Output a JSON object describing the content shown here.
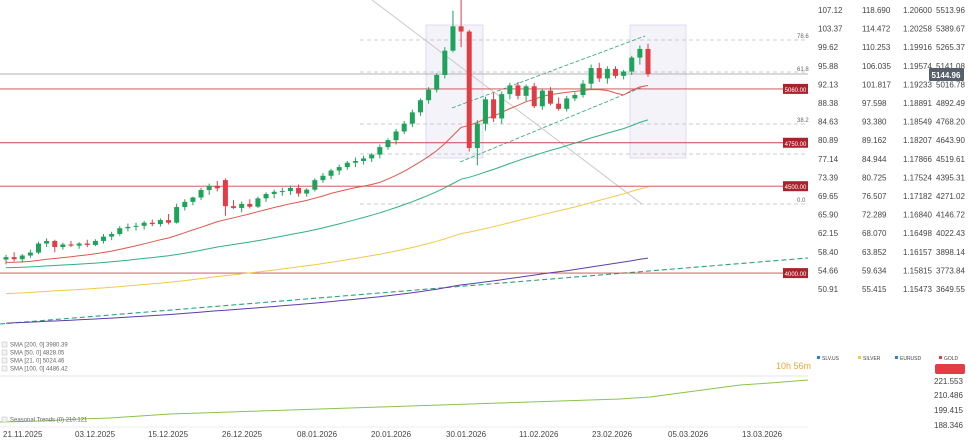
{
  "colors": {
    "up": "#1ea35a",
    "down": "#e03d45",
    "sma20": "#e0574c",
    "sma50": "#2fb17f",
    "sma100": "#f2c94c",
    "sma200": "#5b3fa8",
    "trend": "#2aa27a",
    "support": "#c8454a",
    "seasonal": "#8bc34a",
    "countdown": "#e7a83c",
    "price_badge": "#57606a"
  },
  "chart_data": {
    "type": "candlestick",
    "instrument": "GOLD",
    "last_price": "5144.96",
    "countdown": "10h 56m",
    "x_ticks": [
      "21.11.2025",
      "03.12.2025",
      "15.12.2025",
      "26.12.2025",
      "08.01.2026",
      "20.01.2026",
      "30.01.2026",
      "11.02.2026",
      "23.02.2026",
      "05.03.2026",
      "13.03.2026"
    ],
    "y_ticks": {
      "SLV.US": [
        "107.12",
        "103.37",
        "99.62",
        "95.88",
        "92.13",
        "88.38",
        "84.63",
        "80.89",
        "77.14",
        "73.39",
        "69.65",
        "65.90",
        "62.15",
        "58.40",
        "54.66",
        "50.91"
      ],
      "SILVER": [
        "118.690",
        "114.472",
        "110.253",
        "106.035",
        "101.817",
        "97.598",
        "93.380",
        "89.162",
        "84.944",
        "80.725",
        "76.507",
        "72.289",
        "68.070",
        "63.852",
        "59.634",
        "55.415"
      ],
      "EURUSD": [
        "1.20600",
        "1.20258",
        "1.19916",
        "1.19574",
        "1.19233",
        "1.18891",
        "1.18549",
        "1.18207",
        "1.17866",
        "1.17524",
        "1.17182",
        "1.16840",
        "1.16498",
        "1.16157",
        "1.15815",
        "1.15473"
      ],
      "GOLD": [
        "5513.96",
        "5389.67",
        "5265.37",
        "5141.08",
        "5016.78",
        "4892.49",
        "4768.20",
        "4643.90",
        "4519.61",
        "4395.31",
        "4271.02",
        "4146.72",
        "4022.43",
        "3898.14",
        "3773.84",
        "3649.55"
      ]
    },
    "y_range": [
      3649.55,
      5513.96
    ],
    "legend": [
      "SLV.US",
      "SILVER",
      "EURUSD",
      "GOLD"
    ],
    "support_levels": [
      {
        "label": "5060.00",
        "value": 5060
      },
      {
        "label": "4750.00",
        "value": 4750
      },
      {
        "label": "4500.00",
        "value": 4500
      },
      {
        "label": "4000.00",
        "value": 4000
      }
    ],
    "fib_labels": [
      "78.6",
      "61.8",
      "38.2",
      "0.0"
    ],
    "sma_legend": [
      {
        "name": "SMA [200, 0]",
        "value": "3980.39"
      },
      {
        "name": "SMA [50, 0]",
        "value": "4828.05"
      },
      {
        "name": "SMA [21, 0]",
        "value": "5024.46"
      },
      {
        "name": "SMA [100, 0]",
        "value": "4486.42"
      }
    ],
    "seasonal_label": "Seasonal Trends (0) 210.121",
    "seasonal_ticks": [
      "221.553",
      "210.486",
      "199.415",
      "188.346"
    ],
    "candles": [
      [
        4078,
        4105,
        4050,
        4092
      ],
      [
        4092,
        4120,
        4068,
        4080
      ],
      [
        4080,
        4110,
        4060,
        4101
      ],
      [
        4101,
        4135,
        4088,
        4118
      ],
      [
        4118,
        4180,
        4110,
        4170
      ],
      [
        4170,
        4200,
        4150,
        4185
      ],
      [
        4185,
        4192,
        4120,
        4150
      ],
      [
        4150,
        4175,
        4135,
        4165
      ],
      [
        4165,
        4185,
        4150,
        4158
      ],
      [
        4158,
        4178,
        4140,
        4170
      ],
      [
        4170,
        4192,
        4150,
        4162
      ],
      [
        4162,
        4195,
        4155,
        4185
      ],
      [
        4185,
        4225,
        4170,
        4210
      ],
      [
        4210,
        4238,
        4190,
        4225
      ],
      [
        4225,
        4270,
        4215,
        4258
      ],
      [
        4258,
        4285,
        4240,
        4266
      ],
      [
        4266,
        4290,
        4245,
        4272
      ],
      [
        4272,
        4300,
        4250,
        4290
      ],
      [
        4290,
        4308,
        4270,
        4282
      ],
      [
        4282,
        4315,
        4268,
        4305
      ],
      [
        4305,
        4340,
        4280,
        4290
      ],
      [
        4290,
        4400,
        4285,
        4380
      ],
      [
        4380,
        4425,
        4360,
        4410
      ],
      [
        4410,
        4440,
        4390,
        4435
      ],
      [
        4435,
        4490,
        4420,
        4478
      ],
      [
        4478,
        4515,
        4450,
        4502
      ],
      [
        4502,
        4530,
        4470,
        4488
      ],
      [
        4535,
        4545,
        4330,
        4385
      ],
      [
        4385,
        4420,
        4368,
        4375
      ],
      [
        4375,
        4412,
        4350,
        4398
      ],
      [
        4398,
        4425,
        4372,
        4382
      ],
      [
        4382,
        4440,
        4375,
        4430
      ],
      [
        4430,
        4465,
        4410,
        4455
      ],
      [
        4455,
        4480,
        4430,
        4468
      ],
      [
        4468,
        4492,
        4445,
        4472
      ],
      [
        4472,
        4502,
        4450,
        4490
      ],
      [
        4490,
        4510,
        4440,
        4458
      ],
      [
        4458,
        4488,
        4440,
        4480
      ],
      [
        4480,
        4545,
        4470,
        4535
      ],
      [
        4535,
        4575,
        4520,
        4560
      ],
      [
        4560,
        4600,
        4540,
        4590
      ],
      [
        4590,
        4625,
        4565,
        4610
      ],
      [
        4610,
        4645,
        4595,
        4635
      ],
      [
        4635,
        4665,
        4610,
        4645
      ],
      [
        4645,
        4675,
        4625,
        4660
      ],
      [
        4660,
        4690,
        4640,
        4682
      ],
      [
        4682,
        4740,
        4660,
        4725
      ],
      [
        4725,
        4775,
        4710,
        4765
      ],
      [
        4765,
        4830,
        4740,
        4815
      ],
      [
        4815,
        4875,
        4800,
        4860
      ],
      [
        4860,
        4940,
        4840,
        4925
      ],
      [
        4925,
        5005,
        4905,
        4995
      ],
      [
        4995,
        5070,
        4975,
        5055
      ],
      [
        5055,
        5150,
        5040,
        5140
      ],
      [
        5140,
        5300,
        5120,
        5280
      ],
      [
        5280,
        5510,
        5270,
        5420
      ],
      [
        5420,
        5580,
        5300,
        5390
      ],
      [
        5390,
        5400,
        4700,
        4720
      ],
      [
        4720,
        4880,
        4620,
        4860
      ],
      [
        4860,
        5015,
        4820,
        5000
      ],
      [
        5000,
        5040,
        4870,
        4890
      ],
      [
        4890,
        5045,
        4860,
        5030
      ],
      [
        5030,
        5095,
        5000,
        5080
      ],
      [
        5080,
        5100,
        5000,
        5020
      ],
      [
        5020,
        5085,
        4990,
        5075
      ],
      [
        5075,
        5095,
        4950,
        4960
      ],
      [
        4960,
        5060,
        4940,
        5050
      ],
      [
        5050,
        5070,
        4965,
        4975
      ],
      [
        4975,
        5010,
        4935,
        4945
      ],
      [
        4945,
        5020,
        4930,
        5005
      ],
      [
        5005,
        5040,
        4990,
        5025
      ],
      [
        5025,
        5110,
        5010,
        5090
      ],
      [
        5090,
        5200,
        5060,
        5180
      ],
      [
        5180,
        5210,
        5100,
        5120
      ],
      [
        5120,
        5190,
        5090,
        5175
      ],
      [
        5175,
        5190,
        5120,
        5135
      ],
      [
        5135,
        5170,
        5115,
        5160
      ],
      [
        5160,
        5250,
        5140,
        5240
      ],
      [
        5240,
        5310,
        5200,
        5290
      ],
      [
        5290,
        5320,
        5130,
        5145
      ]
    ]
  }
}
